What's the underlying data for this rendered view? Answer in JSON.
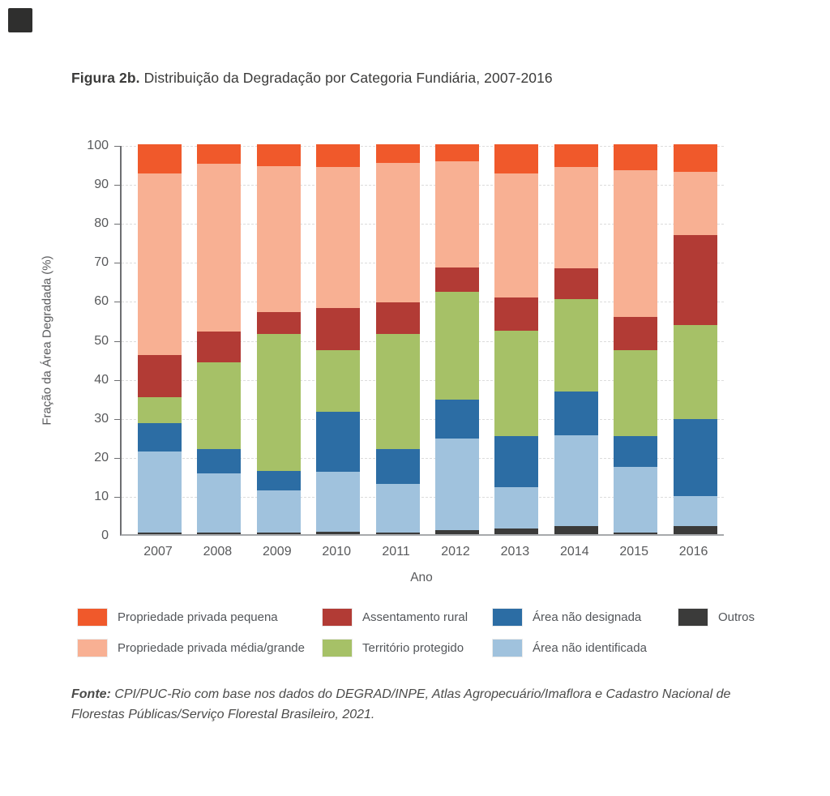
{
  "figure": {
    "label": "Figura 2b.",
    "title": " Distribuição da Degradação por Categoria Fundiária, 2007-2016"
  },
  "chart_data": {
    "type": "bar",
    "stacked": true,
    "normalized_percent": true,
    "xlabel": "Ano",
    "ylabel": "Fração da Área Degradada (%)",
    "ylim": [
      0,
      100
    ],
    "yticks": [
      0,
      10,
      20,
      30,
      40,
      50,
      60,
      70,
      80,
      90,
      100
    ],
    "grid": "dashed horizontal",
    "legend_position": "bottom",
    "categories": [
      "2007",
      "2008",
      "2009",
      "2010",
      "2011",
      "2012",
      "2013",
      "2014",
      "2015",
      "2016"
    ],
    "stack_order_bottom_to_top": [
      "Outros",
      "Área não identificada",
      "Área não designada",
      "Território protegido",
      "Assentamento rural",
      "Propriedade privada média/grande",
      "Propriedade privada pequena"
    ],
    "series": [
      {
        "name": "Propriedade privada pequena",
        "color": "#F0592B",
        "values": [
          7.4,
          5.0,
          5.7,
          5.8,
          4.8,
          4.3,
          7.4,
          5.9,
          6.6,
          7.0
        ]
      },
      {
        "name": "Propriedade privada média/grande",
        "color": "#F8B093",
        "values": [
          46.6,
          43.0,
          37.3,
          36.2,
          35.7,
          27.2,
          31.9,
          26.0,
          37.6,
          16.2
        ]
      },
      {
        "name": "Assentamento rural",
        "color": "#B23B35",
        "values": [
          10.8,
          8.0,
          5.7,
          10.8,
          8.1,
          6.3,
          8.5,
          7.7,
          8.5,
          23.2
        ]
      },
      {
        "name": "Território protegido",
        "color": "#A6C167",
        "values": [
          6.7,
          22.1,
          35.1,
          15.7,
          29.5,
          27.7,
          27.0,
          23.8,
          22.1,
          24.0
        ]
      },
      {
        "name": "Área não designada",
        "color": "#2C6DA4",
        "values": [
          7.2,
          6.3,
          5.0,
          15.5,
          9.1,
          10.0,
          13.1,
          11.2,
          8.0,
          19.8
        ]
      },
      {
        "name": "Área não identificada",
        "color": "#A0C2DD",
        "values": [
          20.8,
          15.2,
          10.8,
          15.3,
          12.3,
          23.5,
          10.7,
          23.4,
          16.7,
          7.8
        ]
      },
      {
        "name": "Outros",
        "color": "#3B3B3A",
        "values": [
          0.5,
          0.4,
          0.4,
          0.7,
          0.5,
          1.0,
          1.4,
          2.0,
          0.5,
          2.0
        ]
      }
    ],
    "legend_rows": [
      [
        "Propriedade privada pequena",
        "Assentamento rural",
        "Área não designada",
        "Outros"
      ],
      [
        "Propriedade privada média/grande",
        "Território protegido",
        "Área não identificada"
      ]
    ]
  },
  "source": {
    "label": "Fonte:",
    "text": " CPI/PUC-Rio com base nos dados do DEGRAD/INPE, Atlas Agropecuário/Imaflora e Cadastro Nacional de Florestas Públicas/Serviço Florestal Brasileiro, 2021."
  }
}
